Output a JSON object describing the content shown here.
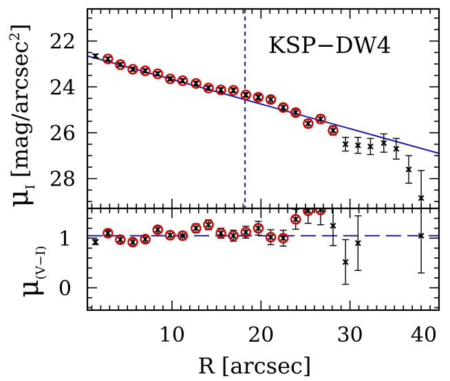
{
  "chart_data": {
    "type": "scatter",
    "annotation": "KSP−DW4",
    "xlabel": "R [arcsec]",
    "xlim": [
      0.5,
      40
    ],
    "xticks": [
      "10",
      "20",
      "30",
      "40"
    ],
    "vline_x": 18.2,
    "top_panel": {
      "ylabel": "μ",
      "ylabel_sub": "I",
      "ylabel_unit": "[mag/arcsec",
      "ylabel_sup": "2",
      "ylabel_close": "]",
      "ylim": [
        29.3,
        20.6
      ],
      "yticks": [
        "22",
        "24",
        "26",
        "28"
      ],
      "fit_line": {
        "x": [
          0.5,
          40
        ],
        "y": [
          22.65,
          26.9
        ]
      },
      "points": [
        {
          "x": 1.4,
          "y": 22.65,
          "err": 0.08,
          "circled": false
        },
        {
          "x": 2.8,
          "y": 22.78,
          "err": 0.08,
          "circled": true
        },
        {
          "x": 4.2,
          "y": 23.03,
          "err": 0.08,
          "circled": true
        },
        {
          "x": 5.6,
          "y": 23.23,
          "err": 0.09,
          "circled": true
        },
        {
          "x": 7.0,
          "y": 23.3,
          "err": 0.09,
          "circled": true
        },
        {
          "x": 8.4,
          "y": 23.43,
          "err": 0.09,
          "circled": true
        },
        {
          "x": 9.8,
          "y": 23.65,
          "err": 0.09,
          "circled": true
        },
        {
          "x": 11.2,
          "y": 23.73,
          "err": 0.09,
          "circled": true
        },
        {
          "x": 12.7,
          "y": 23.85,
          "err": 0.1,
          "circled": true
        },
        {
          "x": 14.1,
          "y": 24.05,
          "err": 0.1,
          "circled": true
        },
        {
          "x": 15.5,
          "y": 24.13,
          "err": 0.1,
          "circled": true
        },
        {
          "x": 16.9,
          "y": 24.15,
          "err": 0.1,
          "circled": true
        },
        {
          "x": 18.3,
          "y": 24.35,
          "err": 0.1,
          "circled": true
        },
        {
          "x": 19.7,
          "y": 24.45,
          "err": 0.12,
          "circled": true
        },
        {
          "x": 21.1,
          "y": 24.55,
          "err": 0.15,
          "circled": true
        },
        {
          "x": 22.5,
          "y": 24.9,
          "err": 0.15,
          "circled": true
        },
        {
          "x": 23.9,
          "y": 25.12,
          "err": 0.15,
          "circled": true
        },
        {
          "x": 25.3,
          "y": 25.6,
          "err": 0.18,
          "circled": true
        },
        {
          "x": 26.7,
          "y": 25.4,
          "err": 0.18,
          "circled": true
        },
        {
          "x": 28.1,
          "y": 25.9,
          "err": 0.2,
          "circled": true
        },
        {
          "x": 29.5,
          "y": 26.5,
          "err": 0.3,
          "circled": false
        },
        {
          "x": 30.9,
          "y": 26.55,
          "err": 0.35,
          "circled": false
        },
        {
          "x": 32.3,
          "y": 26.6,
          "err": 0.35,
          "circled": false
        },
        {
          "x": 33.8,
          "y": 26.45,
          "err": 0.4,
          "circled": false
        },
        {
          "x": 35.2,
          "y": 26.7,
          "err": 0.45,
          "circled": false
        },
        {
          "x": 36.6,
          "y": 27.6,
          "err": 0.6,
          "circled": false
        },
        {
          "x": 38.0,
          "y": 28.85,
          "err": 1.2,
          "circled": false
        }
      ]
    },
    "bottom_panel": {
      "ylabel": "μ",
      "ylabel_sub": "(V−I)",
      "ylim": [
        -0.45,
        1.6
      ],
      "yticks": [
        "0",
        "1"
      ],
      "ref_line_y": 1.05,
      "points": [
        {
          "x": 1.4,
          "y": 0.92,
          "err": 0.05,
          "circled": false
        },
        {
          "x": 2.8,
          "y": 1.1,
          "err": 0.06,
          "circled": true
        },
        {
          "x": 4.2,
          "y": 0.97,
          "err": 0.07,
          "circled": true
        },
        {
          "x": 5.6,
          "y": 0.92,
          "err": 0.07,
          "circled": true
        },
        {
          "x": 7.0,
          "y": 0.98,
          "err": 0.07,
          "circled": true
        },
        {
          "x": 8.4,
          "y": 1.17,
          "err": 0.07,
          "circled": true
        },
        {
          "x": 9.8,
          "y": 1.06,
          "err": 0.08,
          "circled": true
        },
        {
          "x": 11.2,
          "y": 1.05,
          "err": 0.08,
          "circled": true
        },
        {
          "x": 12.7,
          "y": 1.2,
          "err": 0.09,
          "circled": true
        },
        {
          "x": 14.1,
          "y": 1.27,
          "err": 0.1,
          "circled": true
        },
        {
          "x": 15.5,
          "y": 1.1,
          "err": 0.1,
          "circled": true
        },
        {
          "x": 16.9,
          "y": 1.05,
          "err": 0.11,
          "circled": true
        },
        {
          "x": 18.3,
          "y": 1.12,
          "err": 0.12,
          "circled": true
        },
        {
          "x": 19.7,
          "y": 1.2,
          "err": 0.14,
          "circled": true
        },
        {
          "x": 21.1,
          "y": 1.02,
          "err": 0.15,
          "circled": true
        },
        {
          "x": 22.5,
          "y": 1.0,
          "err": 0.16,
          "circled": true
        },
        {
          "x": 23.9,
          "y": 1.38,
          "err": 0.2,
          "circled": true
        },
        {
          "x": 25.3,
          "y": 1.55,
          "err": 0.25,
          "circled": true
        },
        {
          "x": 26.7,
          "y": 1.57,
          "err": 0.3,
          "circled": true
        },
        {
          "x": 28.1,
          "y": 1.25,
          "err": 0.4,
          "circled": false
        },
        {
          "x": 29.5,
          "y": 0.52,
          "err": 0.45,
          "circled": false
        },
        {
          "x": 30.9,
          "y": 0.9,
          "err": 0.55,
          "circled": false
        },
        {
          "x": 38.0,
          "y": 1.05,
          "err": 0.75,
          "circled": false
        }
      ]
    },
    "colors": {
      "fit_line": "#1a1aa6",
      "vline": "#1a1ad0",
      "ref_line": "#1a1aa6",
      "circle": "#d40000",
      "points": "#000000"
    }
  }
}
